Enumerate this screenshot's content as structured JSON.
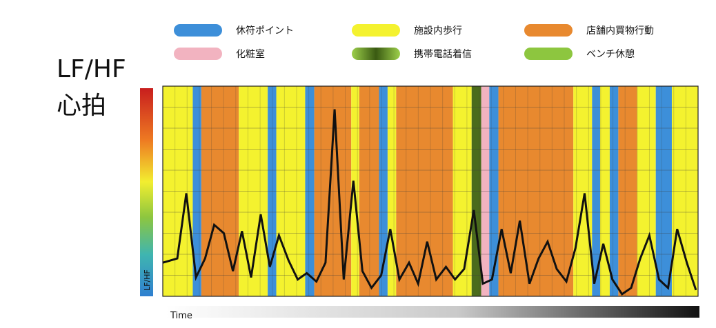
{
  "legend": [
    {
      "label": "休符ポイント",
      "color": "#3d8fd9"
    },
    {
      "label": "施設内歩行",
      "color": "#f4f22f"
    },
    {
      "label": "店舗内買物行動",
      "color": "#e8892f"
    },
    {
      "label": "化粧室",
      "color": "#f2b3c0"
    },
    {
      "label": "携帯電話着信",
      "color": "#4a6b1c"
    },
    {
      "label": "ベンチ休憩",
      "color": "#8dc63f"
    }
  ],
  "chart_data": {
    "type": "line",
    "title": "LF/HF 心拍",
    "title_lines": [
      "LF/HF",
      "心拍"
    ],
    "colorbar_label": "LF/HF",
    "xlabel": "Time",
    "ylim": [
      0,
      10
    ],
    "xlim": [
      0,
      100
    ],
    "grid": true,
    "activity_bands": [
      {
        "activity": "施設内歩行",
        "start": 0,
        "end": 5.6
      },
      {
        "activity": "休符ポイント",
        "start": 5.6,
        "end": 7.2
      },
      {
        "activity": "店舗内買物行動",
        "start": 7.2,
        "end": 14.2
      },
      {
        "activity": "施設内歩行",
        "start": 14.2,
        "end": 19.6
      },
      {
        "activity": "休符ポイント",
        "start": 19.6,
        "end": 21.2
      },
      {
        "activity": "施設内歩行",
        "start": 21.2,
        "end": 26.6
      },
      {
        "activity": "休符ポイント",
        "start": 26.6,
        "end": 28.3
      },
      {
        "activity": "店舗内買物行動",
        "start": 28.3,
        "end": 35.2
      },
      {
        "activity": "施設内歩行",
        "start": 35.2,
        "end": 36.7
      },
      {
        "activity": "店舗内買物行動",
        "start": 36.7,
        "end": 40.4
      },
      {
        "activity": "休符ポイント",
        "start": 40.4,
        "end": 42.0
      },
      {
        "activity": "施設内歩行",
        "start": 42.0,
        "end": 43.6
      },
      {
        "activity": "店舗内買物行動",
        "start": 43.6,
        "end": 54.2
      },
      {
        "activity": "施設内歩行",
        "start": 54.2,
        "end": 57.7
      },
      {
        "activity": "携帯電話着信",
        "start": 57.7,
        "end": 59.5
      },
      {
        "activity": "化粧室",
        "start": 59.5,
        "end": 61.0
      },
      {
        "activity": "休符ポイント",
        "start": 61.0,
        "end": 62.7
      },
      {
        "activity": "店舗内買物行動",
        "start": 62.7,
        "end": 76.7
      },
      {
        "activity": "施設内歩行",
        "start": 76.7,
        "end": 80.2
      },
      {
        "activity": "休符ポイント",
        "start": 80.2,
        "end": 81.7
      },
      {
        "activity": "施設内歩行",
        "start": 81.7,
        "end": 83.5
      },
      {
        "activity": "休符ポイント",
        "start": 83.5,
        "end": 85.1
      },
      {
        "activity": "店舗内買物行動",
        "start": 85.1,
        "end": 88.6
      },
      {
        "activity": "施設内歩行",
        "start": 88.6,
        "end": 92.1
      },
      {
        "activity": "休符ポイント",
        "start": 92.1,
        "end": 95.1
      },
      {
        "activity": "施設内歩行",
        "start": 95.1,
        "end": 100
      }
    ],
    "series": [
      {
        "x": [
          0,
          2.7,
          4.4,
          6.2,
          7.9,
          9.6,
          11.4,
          13.1,
          14.8,
          16.5,
          18.3,
          20.0,
          21.7,
          23.5,
          25.2,
          26.9,
          28.7,
          30.4,
          32.1,
          33.8,
          35.6,
          37.3,
          39.0,
          40.8,
          42.5,
          44.2,
          46.0,
          47.7,
          49.4,
          51.1,
          52.9,
          54.6,
          56.3,
          58.1,
          59.8,
          61.5,
          63.3,
          65.0,
          66.7,
          68.5,
          70.2,
          71.9,
          73.6,
          75.4,
          77.1,
          78.8,
          80.6,
          82.3,
          84.0,
          85.8,
          87.5,
          89.2,
          90.9,
          92.7,
          94.4,
          96.1,
          97.9,
          99.6
        ],
        "y": [
          1.6,
          1.8,
          4.9,
          0.9,
          1.8,
          3.4,
          3.0,
          1.2,
          3.1,
          0.9,
          3.9,
          1.4,
          2.9,
          1.7,
          0.8,
          1.1,
          0.7,
          1.6,
          8.9,
          0.8,
          5.5,
          1.2,
          0.4,
          1.0,
          3.2,
          0.8,
          1.6,
          0.6,
          2.6,
          0.8,
          1.4,
          0.8,
          1.3,
          4.1,
          0.6,
          0.8,
          3.2,
          1.1,
          3.6,
          0.6,
          1.8,
          2.6,
          1.3,
          0.7,
          2.3,
          4.9,
          0.6,
          2.5,
          0.8,
          0.1,
          0.4,
          1.8,
          2.9,
          0.8,
          0.4,
          3.2,
          1.6,
          0.3
        ]
      }
    ]
  }
}
